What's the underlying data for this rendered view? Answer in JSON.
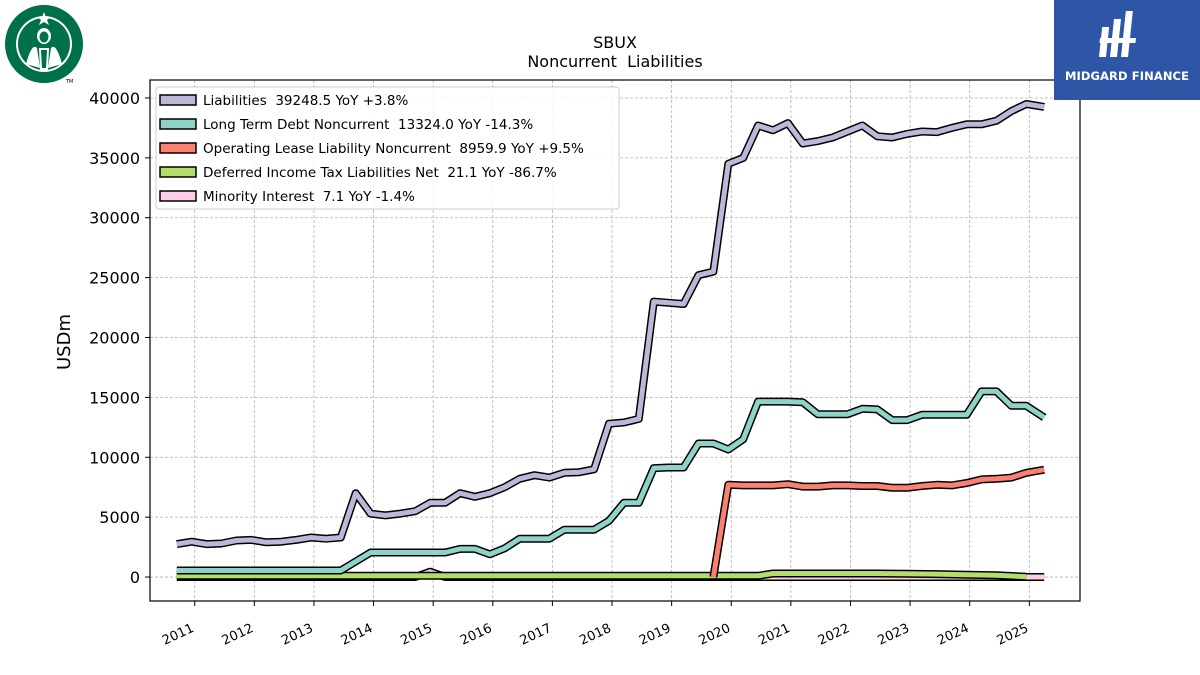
{
  "logos": {
    "left": {
      "name": "Starbucks",
      "mark": "TM"
    },
    "right": {
      "name": "MIDGARD FINANCE"
    }
  },
  "chart_data": {
    "type": "line",
    "title": "SBUX",
    "subtitle": "Noncurrent  Liabilities",
    "ylabel": "USDm",
    "xlabel": "",
    "ylim": [
      -2000,
      41500
    ],
    "xlim": [
      2010.25,
      2025.85
    ],
    "yticks": [
      0,
      5000,
      10000,
      15000,
      20000,
      25000,
      30000,
      35000,
      40000
    ],
    "xticks": [
      "2011",
      "2012",
      "2013",
      "2014",
      "2015",
      "2016",
      "2017",
      "2018",
      "2019",
      "2020",
      "2021",
      "2022",
      "2023",
      "2024",
      "2025"
    ],
    "grid": true,
    "legend_position": "top-left",
    "series": [
      {
        "name": "Liabilities  39248.5 YoY +3.8%",
        "color": "#bcb8d9",
        "x": [
          2010.7,
          2010.95,
          2011.2,
          2011.45,
          2011.7,
          2011.95,
          2012.2,
          2012.45,
          2012.7,
          2012.95,
          2013.2,
          2013.45,
          2013.7,
          2013.95,
          2014.2,
          2014.45,
          2014.7,
          2014.95,
          2015.2,
          2015.45,
          2015.7,
          2015.95,
          2016.2,
          2016.45,
          2016.7,
          2016.95,
          2017.2,
          2017.45,
          2017.7,
          2017.95,
          2018.2,
          2018.45,
          2018.7,
          2018.95,
          2019.2,
          2019.45,
          2019.7,
          2019.95,
          2020.2,
          2020.45,
          2020.7,
          2020.95,
          2021.2,
          2021.45,
          2021.7,
          2021.95,
          2022.2,
          2022.45,
          2022.7,
          2022.95,
          2023.2,
          2023.45,
          2023.7,
          2023.95,
          2024.2,
          2024.45,
          2024.7,
          2024.95,
          2025.25
        ],
        "values": [
          2750,
          2950,
          2750,
          2800,
          3050,
          3100,
          2900,
          2950,
          3100,
          3300,
          3200,
          3300,
          7000,
          5300,
          5150,
          5300,
          5500,
          6200,
          6200,
          7000,
          6700,
          7000,
          7500,
          8200,
          8500,
          8300,
          8700,
          8750,
          9000,
          12800,
          12900,
          13200,
          23000,
          22900,
          22800,
          25200,
          25500,
          34500,
          35000,
          37700,
          37300,
          37900,
          36200,
          36400,
          36700,
          37200,
          37700,
          36800,
          36700,
          37000,
          37200,
          37150,
          37500,
          37800,
          37800,
          38100,
          38900,
          39500,
          39250
        ]
      },
      {
        "name": "Long Term Debt Noncurrent  13324.0 YoY -14.3%",
        "color": "#8dd3c7",
        "x": [
          2010.7,
          2010.95,
          2011.2,
          2011.45,
          2011.7,
          2011.95,
          2012.2,
          2012.45,
          2012.7,
          2012.95,
          2013.2,
          2013.45,
          2013.7,
          2013.95,
          2014.2,
          2014.45,
          2014.7,
          2014.95,
          2015.2,
          2015.45,
          2015.7,
          2015.95,
          2016.2,
          2016.45,
          2016.7,
          2016.95,
          2017.2,
          2017.45,
          2017.7,
          2017.95,
          2018.2,
          2018.45,
          2018.7,
          2018.95,
          2019.2,
          2019.45,
          2019.7,
          2019.95,
          2020.2,
          2020.45,
          2020.7,
          2020.95,
          2021.2,
          2021.45,
          2021.7,
          2021.95,
          2022.2,
          2022.45,
          2022.7,
          2022.95,
          2023.2,
          2023.45,
          2023.7,
          2023.95,
          2024.2,
          2024.45,
          2024.7,
          2024.95,
          2025.25
        ],
        "values": [
          550,
          550,
          550,
          550,
          550,
          550,
          550,
          550,
          550,
          550,
          550,
          550,
          1300,
          2050,
          2050,
          2050,
          2050,
          2050,
          2050,
          2350,
          2350,
          1900,
          2400,
          3200,
          3200,
          3200,
          3950,
          3950,
          3950,
          4700,
          6200,
          6200,
          9100,
          9150,
          9150,
          11150,
          11150,
          10650,
          11500,
          14650,
          14650,
          14650,
          14600,
          13600,
          13600,
          13600,
          14050,
          14000,
          13100,
          13100,
          13550,
          13550,
          13550,
          13550,
          15500,
          15500,
          14300,
          14300,
          13324
        ]
      },
      {
        "name": "Operating Lease Liability Noncurrent  8959.9 YoY +9.5%",
        "color": "#fb8072",
        "x": [
          2019.7,
          2019.95,
          2020.2,
          2020.45,
          2020.7,
          2020.95,
          2021.2,
          2021.45,
          2021.7,
          2021.95,
          2022.2,
          2022.45,
          2022.7,
          2022.95,
          2023.2,
          2023.45,
          2023.7,
          2023.95,
          2024.2,
          2024.45,
          2024.7,
          2024.95,
          2025.25
        ],
        "values": [
          0,
          7700,
          7650,
          7650,
          7650,
          7750,
          7550,
          7550,
          7650,
          7650,
          7600,
          7600,
          7450,
          7450,
          7600,
          7700,
          7650,
          7850,
          8150,
          8200,
          8300,
          8700,
          8960
        ]
      },
      {
        "name": "Deferred Income Tax Liabilities Net  21.1 YoY -86.7%",
        "color": "#b3de69",
        "x": [
          2010.7,
          2014.95,
          2015.2,
          2020.45,
          2020.7,
          2022.45,
          2022.95,
          2023.45,
          2023.95,
          2024.45,
          2024.95
        ],
        "values": [
          100,
          100,
          100,
          100,
          300,
          300,
          280,
          250,
          200,
          150,
          21
        ]
      },
      {
        "name": "Minority Interest  7.1 YoY -1.4%",
        "color": "#fccde5",
        "x": [
          2010.7,
          2010.95,
          2011.2,
          2011.45,
          2011.7,
          2011.95,
          2012.2,
          2012.45,
          2012.7,
          2012.95,
          2013.2,
          2013.45,
          2013.7,
          2013.95,
          2014.2,
          2014.45,
          2014.7,
          2014.95,
          2015.2,
          2015.45,
          2015.7,
          2015.95,
          2016.2,
          2016.45,
          2016.7,
          2016.95,
          2017.2,
          2017.45,
          2017.7,
          2017.95,
          2018.2,
          2018.45,
          2018.7,
          2018.95,
          2019.2,
          2019.45,
          2019.7,
          2019.95,
          2020.2,
          2020.45,
          2020.7,
          2020.95,
          2021.2,
          2021.45,
          2021.7,
          2021.95,
          2022.2,
          2022.45,
          2022.7,
          2022.95,
          2023.2,
          2023.45,
          2023.7,
          2023.95,
          2024.2,
          2024.45,
          2024.7,
          2024.95,
          2025.25
        ],
        "values": [
          0,
          0,
          0,
          0,
          0,
          0,
          0,
          0,
          0,
          0,
          0,
          0,
          0,
          0,
          0,
          0,
          0,
          450,
          0,
          0,
          0,
          0,
          0,
          0,
          0,
          0,
          0,
          0,
          0,
          0,
          0,
          0,
          0,
          0,
          0,
          0,
          0,
          0,
          0,
          0,
          0,
          0,
          0,
          0,
          0,
          0,
          0,
          0,
          0,
          0,
          0,
          0,
          0,
          0,
          0,
          0,
          0,
          0,
          7
        ]
      }
    ]
  }
}
